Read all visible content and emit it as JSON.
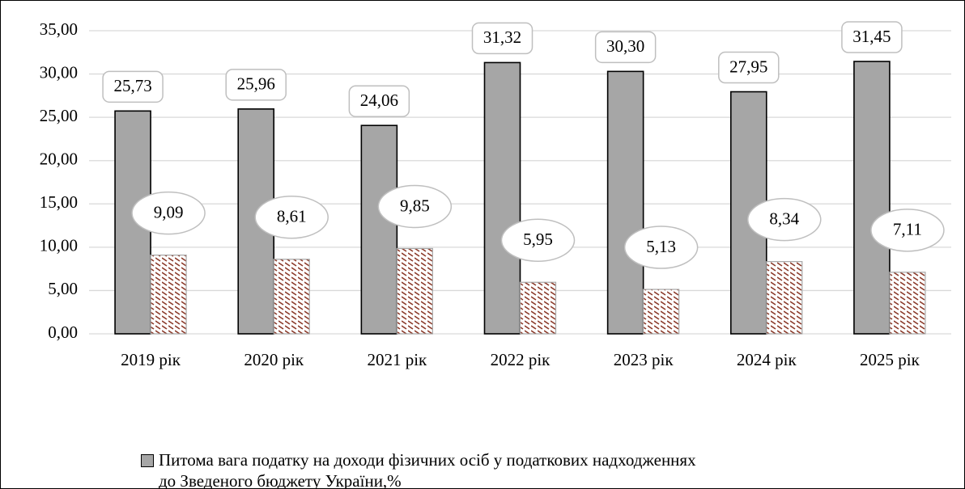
{
  "chart_data": {
    "type": "bar",
    "categories": [
      "2019 рік",
      "2020 рік",
      "2021 рік",
      "2022 рік",
      "2023 рік",
      "2024 рік",
      "2025 рік"
    ],
    "series": [
      {
        "name": "Питома вага податку на доходи фізичних осіб у податкових надходженнях до Зведеного бюджету України,%",
        "color": "#a6a6a6",
        "values": [
          25.73,
          25.96,
          24.06,
          31.32,
          30.3,
          27.95,
          31.45
        ],
        "value_labels": [
          "25,73",
          "25,96",
          "24,06",
          "31,32",
          "30,30",
          "27,95",
          "31,45"
        ]
      },
      {
        "color": "#8b3a2a",
        "values": [
          9.09,
          8.61,
          9.85,
          5.95,
          5.13,
          8.34,
          7.11
        ],
        "value_labels": [
          "9,09",
          "8,61",
          "9,85",
          "5,95",
          "5,13",
          "8,34",
          "7,11"
        ]
      }
    ],
    "ylim": [
      0,
      35
    ],
    "yticks": [
      {
        "value": 0,
        "label": "0,00"
      },
      {
        "value": 5,
        "label": "5,00"
      },
      {
        "value": 10,
        "label": "10,00"
      },
      {
        "value": 15,
        "label": "15,00"
      },
      {
        "value": 20,
        "label": "20,00"
      },
      {
        "value": 25,
        "label": "25,00"
      },
      {
        "value": 30,
        "label": "30,00"
      },
      {
        "value": 35,
        "label": "35,00"
      }
    ],
    "grid": true,
    "legend": "bottom"
  }
}
